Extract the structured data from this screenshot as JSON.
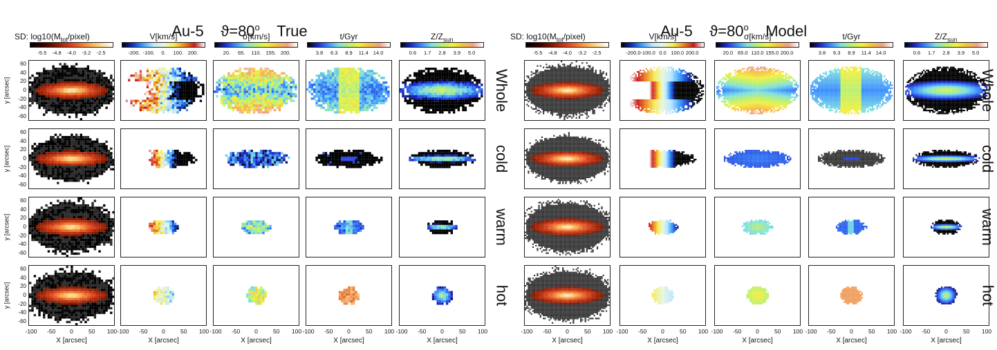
{
  "chart_data": [
    {
      "type": "heatmap",
      "title": "Au-5  ϑ=80° True",
      "title_parts": {
        "galaxy": "Au-5",
        "angle_symbol": "ϑ=80",
        "degree": "o",
        "kind": "True"
      },
      "xlabel": "X [arcsec]",
      "ylabel": "y [arcsec]",
      "xlim": [
        -100,
        100
      ],
      "ylim": [
        -70,
        70
      ],
      "x_ticks": [
        "-100",
        "-50",
        "0",
        "50",
        "100"
      ],
      "y_ticks": [
        "60",
        "40",
        "20",
        "0",
        "-20",
        "-40",
        "-60"
      ],
      "rows": [
        "Whole",
        "cold",
        "warm",
        "hot"
      ],
      "columns": [
        {
          "label": "SD: log10(M",
          "sub": "tot",
          "suffix": "/pixel)",
          "colormap": "hot",
          "ticks": [
            "-5.5",
            "-4.8",
            "-4.0",
            "-3.2",
            "-2.5"
          ]
        },
        {
          "label": "V[km/s]",
          "sub": "",
          "suffix": "",
          "colormap": "velocity",
          "ticks": [
            "-200.",
            "-100.",
            "0.",
            "100.",
            "200."
          ]
        },
        {
          "label": "σ[km/s]",
          "sub": "",
          "suffix": "",
          "colormap": "rainbow",
          "ticks": [
            "20.",
            "65.",
            "110.",
            "155.",
            "200."
          ]
        },
        {
          "label": "t/Gyr",
          "sub": "",
          "suffix": "",
          "colormap": "rainbow",
          "ticks": [
            "3.8",
            "6.3",
            "8.9",
            "11.4",
            "14.0"
          ]
        },
        {
          "label": "Z/Z",
          "sub": "sun",
          "suffix": "",
          "colormap": "rainbow",
          "ticks": [
            "0.6",
            "1.7",
            "2.8",
            "3.9",
            "5.0"
          ]
        }
      ]
    },
    {
      "type": "heatmap",
      "title": "Au-5  ϑ=80° Model",
      "title_parts": {
        "galaxy": "Au-5",
        "angle_symbol": "ϑ=80",
        "degree": "o",
        "kind": "Model"
      },
      "xlabel": "X [arcsec]",
      "ylabel": "",
      "xlim": [
        -100,
        100
      ],
      "ylim": [
        -70,
        70
      ],
      "x_ticks": [
        "-100",
        "-50",
        "0",
        "50",
        "100"
      ],
      "rows": [
        "Whole",
        "cold",
        "warm",
        "hot"
      ],
      "columns": [
        {
          "label": "SD: log10(M",
          "sub": "tot",
          "suffix": "/pixel)",
          "colormap": "hot",
          "ticks": [
            "-5.5",
            "-4.8",
            "-4.0",
            "-3.2",
            "-2.5"
          ]
        },
        {
          "label": "V[km/s]",
          "sub": "",
          "suffix": "",
          "colormap": "velocity",
          "ticks": [
            "-200.0",
            "-100.0",
            "0.0",
            "100.0",
            "200.0"
          ]
        },
        {
          "label": "σ[km/s]",
          "sub": "",
          "suffix": "",
          "colormap": "rainbow",
          "ticks": [
            "20.0",
            "65.0",
            "110.0",
            "155.0",
            "200.0"
          ]
        },
        {
          "label": "t/Gyr",
          "sub": "",
          "suffix": "",
          "colormap": "rainbow",
          "ticks": [
            "3.8",
            "6.3",
            "8.9",
            "11.4",
            "14.0"
          ]
        },
        {
          "label": "Z/Z",
          "sub": "sun",
          "suffix": "",
          "colormap": "rainbow",
          "ticks": [
            "0.6",
            "1.7",
            "2.8",
            "3.9",
            "5.0"
          ]
        }
      ]
    }
  ],
  "colors": {
    "frame": "#222222",
    "hot_ramp": [
      "#000000",
      "#3a0000",
      "#8b1a00",
      "#d8401a",
      "#f58a3a",
      "#ffd27a",
      "#ffffff"
    ],
    "velocity_ramp": [
      "#000000",
      "#1030c0",
      "#3aa0ff",
      "#b8e8ff",
      "#e8f5e0",
      "#f5ee50",
      "#f08a20",
      "#c81818",
      "#ffffff"
    ],
    "rainbow_ramp": [
      "#000000",
      "#1a2ad0",
      "#3a8cff",
      "#7ee0e0",
      "#b8f070",
      "#f0f040",
      "#f8c040",
      "#f0a080",
      "#ffffff"
    ],
    "disk_blue": "#2c44e0",
    "core_red": "#e23a20",
    "old_purple": "#7a3ab0",
    "cold_gray": "#3a3a3a"
  },
  "row_styles": {
    "Whole": {
      "sd_extent": 0.95,
      "sd_aspect": 0.4
    },
    "cold": {
      "sd_extent": 0.95,
      "sd_aspect": 0.35
    },
    "warm": {
      "sd_extent": 0.95,
      "sd_aspect": 0.42
    },
    "hot": {
      "sd_extent": 0.95,
      "sd_aspect": 0.55
    }
  }
}
